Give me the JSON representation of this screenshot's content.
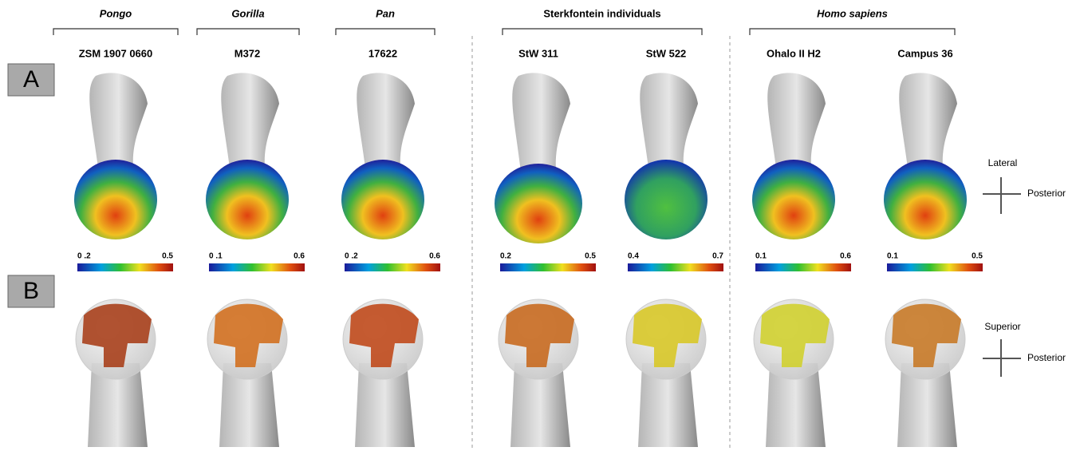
{
  "groups": [
    {
      "label": "Pongo"
    },
    {
      "label": "Gorilla"
    },
    {
      "label": "Pan"
    },
    {
      "label": "Sterkfontein individuals"
    },
    {
      "label": "Homo sapiens"
    }
  ],
  "specimens": [
    {
      "name": "ZSM 1907 0660",
      "scale_min": "0 .2",
      "scale_max": "0.5"
    },
    {
      "name": "M372",
      "scale_min": "0 .1",
      "scale_max": "0.6"
    },
    {
      "name": "17622",
      "scale_min": "0 .2",
      "scale_max": "0.6"
    },
    {
      "name": "StW 311",
      "scale_min": "0.2",
      "scale_max": "0.5"
    },
    {
      "name": "StW 522",
      "scale_min": "0.4",
      "scale_max": "0.7"
    },
    {
      "name": "Ohalo II H2",
      "scale_min": "0.1",
      "scale_max": "0.6"
    },
    {
      "name": "Campus 36",
      "scale_min": "0.1",
      "scale_max": "0.5"
    }
  ],
  "panels": [
    "A",
    "B"
  ],
  "orientation_a": {
    "up": "Lateral",
    "right": "Posterior"
  },
  "orientation_b": {
    "up": "Superior",
    "right": "Posterior"
  }
}
